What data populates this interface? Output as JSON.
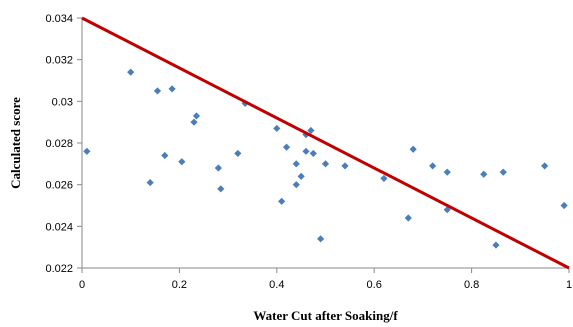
{
  "chart_data": {
    "type": "scatter",
    "xlabel": "Water Cut after Soaking/f",
    "ylabel": "Calculated score",
    "xlim": [
      0,
      1
    ],
    "ylim": [
      0.022,
      0.034
    ],
    "x_ticks": [
      0,
      0.2,
      0.4,
      0.6,
      0.8,
      1
    ],
    "x_tick_labels": [
      "0",
      "0.2",
      "0.4",
      "0.6",
      "0.8",
      "1"
    ],
    "y_ticks": [
      0.022,
      0.024,
      0.026,
      0.028,
      0.03,
      0.032,
      0.034
    ],
    "y_tick_labels": [
      "0.022",
      "0.024",
      "0.026",
      "0.028",
      "0.03",
      "0.032",
      "0.034"
    ],
    "grid": false,
    "legend": "none",
    "colors": {
      "points": "#4a7ebb",
      "line": "#c00000",
      "axis": "#888888"
    },
    "series": [
      {
        "values": [
          {
            "x": 0.01,
            "y": 0.0276
          },
          {
            "x": 0.1,
            "y": 0.0314
          },
          {
            "x": 0.14,
            "y": 0.0261
          },
          {
            "x": 0.155,
            "y": 0.0305
          },
          {
            "x": 0.17,
            "y": 0.0274
          },
          {
            "x": 0.185,
            "y": 0.0306
          },
          {
            "x": 0.205,
            "y": 0.0271
          },
          {
            "x": 0.23,
            "y": 0.029
          },
          {
            "x": 0.235,
            "y": 0.0293
          },
          {
            "x": 0.28,
            "y": 0.0268
          },
          {
            "x": 0.285,
            "y": 0.0258
          },
          {
            "x": 0.32,
            "y": 0.0275
          },
          {
            "x": 0.335,
            "y": 0.0299
          },
          {
            "x": 0.4,
            "y": 0.0287
          },
          {
            "x": 0.41,
            "y": 0.0252
          },
          {
            "x": 0.42,
            "y": 0.0278
          },
          {
            "x": 0.44,
            "y": 0.027
          },
          {
            "x": 0.44,
            "y": 0.026
          },
          {
            "x": 0.45,
            "y": 0.0264
          },
          {
            "x": 0.46,
            "y": 0.0276
          },
          {
            "x": 0.46,
            "y": 0.0284
          },
          {
            "x": 0.47,
            "y": 0.0286
          },
          {
            "x": 0.475,
            "y": 0.0275
          },
          {
            "x": 0.49,
            "y": 0.0234
          },
          {
            "x": 0.5,
            "y": 0.027
          },
          {
            "x": 0.54,
            "y": 0.0269
          },
          {
            "x": 0.62,
            "y": 0.0263
          },
          {
            "x": 0.67,
            "y": 0.0244
          },
          {
            "x": 0.68,
            "y": 0.0277
          },
          {
            "x": 0.72,
            "y": 0.0269
          },
          {
            "x": 0.75,
            "y": 0.0266
          },
          {
            "x": 0.75,
            "y": 0.0248
          },
          {
            "x": 0.825,
            "y": 0.0265
          },
          {
            "x": 0.85,
            "y": 0.0231
          },
          {
            "x": 0.865,
            "y": 0.0266
          },
          {
            "x": 0.95,
            "y": 0.0269
          },
          {
            "x": 0.99,
            "y": 0.025
          }
        ]
      }
    ],
    "trend_line": {
      "from": {
        "x": 0,
        "y": 0.034
      },
      "to": {
        "x": 1,
        "y": 0.022
      }
    }
  }
}
